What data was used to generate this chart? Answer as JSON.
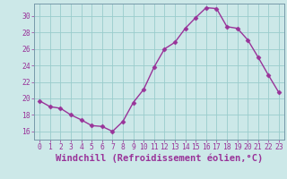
{
  "x": [
    0,
    1,
    2,
    3,
    4,
    5,
    6,
    7,
    8,
    9,
    10,
    11,
    12,
    13,
    14,
    15,
    16,
    17,
    18,
    19,
    20,
    21,
    22,
    23
  ],
  "y": [
    19.7,
    19.0,
    18.8,
    18.0,
    17.4,
    16.7,
    16.6,
    16.0,
    17.2,
    19.5,
    21.1,
    23.8,
    26.0,
    26.8,
    28.5,
    29.8,
    31.0,
    30.9,
    28.7,
    28.5,
    27.1,
    25.0,
    22.8,
    20.7
  ],
  "line_color": "#993399",
  "marker": "D",
  "markersize": 2.5,
  "linewidth": 1.0,
  "bg_color": "#cce8e8",
  "grid_color": "#99cccc",
  "xlabel": "Windchill (Refroidissement éolien,°C)",
  "xlim": [
    -0.5,
    23.5
  ],
  "ylim": [
    15.0,
    31.5
  ],
  "yticks": [
    16,
    18,
    20,
    22,
    24,
    26,
    28,
    30
  ],
  "xticks": [
    0,
    1,
    2,
    3,
    4,
    5,
    6,
    7,
    8,
    9,
    10,
    11,
    12,
    13,
    14,
    15,
    16,
    17,
    18,
    19,
    20,
    21,
    22,
    23
  ],
  "tick_color": "#993399",
  "label_color": "#993399",
  "tick_fontsize": 5.8,
  "xlabel_fontsize": 7.5,
  "spine_color": "#7799aa"
}
